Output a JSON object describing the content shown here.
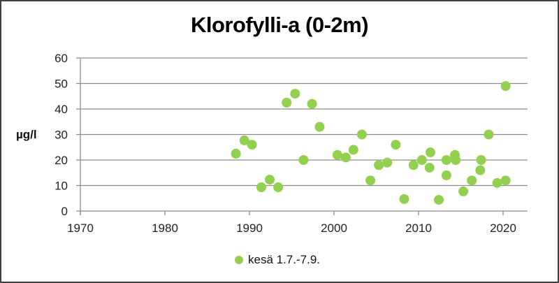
{
  "chart_data": {
    "type": "scatter",
    "title": "Klorofylli-a (0-2m)",
    "xlabel": "",
    "ylabel": "µg/l",
    "xlim": [
      1970,
      2023
    ],
    "ylim": [
      0,
      60
    ],
    "xticks": [
      1970,
      1980,
      1990,
      2000,
      2010,
      2020
    ],
    "yticks": [
      0,
      10,
      20,
      30,
      40,
      50,
      60
    ],
    "grid": "horizontal",
    "legend_position": "bottom",
    "series": [
      {
        "name": "kesä 1.7.-7.9.",
        "color": "#92D050",
        "points": [
          [
            1988.4,
            22.5
          ],
          [
            1989.4,
            27.7
          ],
          [
            1990.3,
            26
          ],
          [
            1991.4,
            9.3
          ],
          [
            1992.4,
            12.3
          ],
          [
            1993.4,
            9.3
          ],
          [
            1994.4,
            42.5
          ],
          [
            1995.4,
            46
          ],
          [
            1996.4,
            20
          ],
          [
            1997.4,
            42
          ],
          [
            1998.3,
            33
          ],
          [
            2000.4,
            22
          ],
          [
            2001.4,
            21
          ],
          [
            2002.3,
            24
          ],
          [
            2003.3,
            30
          ],
          [
            2004.3,
            12
          ],
          [
            2005.3,
            18
          ],
          [
            2006.3,
            19
          ],
          [
            2007.3,
            26
          ],
          [
            2008.3,
            4.7
          ],
          [
            2009.4,
            18
          ],
          [
            2010.4,
            20
          ],
          [
            2011.3,
            17
          ],
          [
            2011.4,
            23
          ],
          [
            2012.4,
            4.4
          ],
          [
            2013.3,
            20
          ],
          [
            2013.3,
            14
          ],
          [
            2014.3,
            22
          ],
          [
            2014.4,
            20
          ],
          [
            2015.3,
            7.7
          ],
          [
            2016.3,
            12
          ],
          [
            2017.3,
            16
          ],
          [
            2017.4,
            20
          ],
          [
            2018.3,
            30
          ],
          [
            2019.3,
            11
          ],
          [
            2020.3,
            12
          ],
          [
            2020.3,
            49
          ]
        ]
      }
    ]
  },
  "legend": {
    "label": "kesä 1.7.-7.9."
  }
}
